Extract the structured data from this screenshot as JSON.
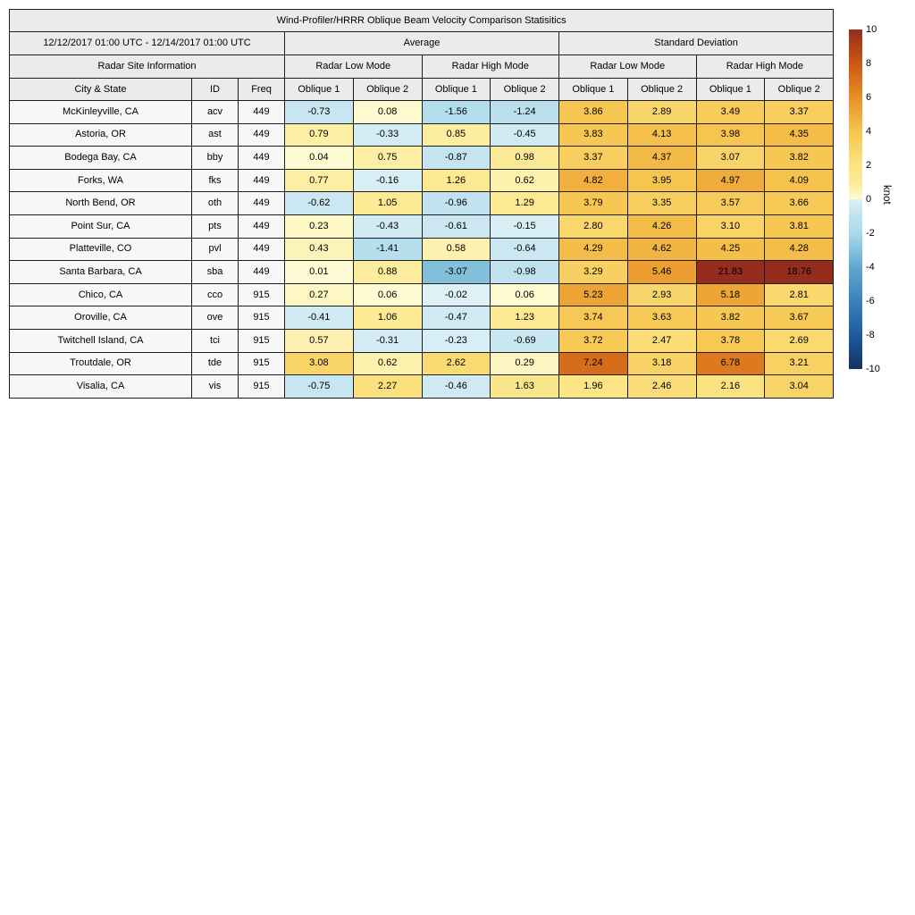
{
  "chart_data": {
    "type": "table-heatmap",
    "title": "Wind-Profiler/HRRR Oblique Beam Velocity Comparison Statisitics",
    "date_range": "12/12/2017 01:00 UTC - 12/14/2017 01:00 UTC",
    "row_header_group": "Radar Site Information",
    "stat_groups": [
      "Average",
      "Standard Deviation"
    ],
    "mode_groups": [
      "Radar Low Mode",
      "Radar High Mode",
      "Radar Low Mode",
      "Radar High Mode"
    ],
    "col_headers": {
      "city": "City & State",
      "id": "ID",
      "freq": "Freq"
    },
    "oblique_labels": [
      "Oblique 1",
      "Oblique 2"
    ],
    "rows": [
      {
        "city": "McKinleyville, CA",
        "id": "acv",
        "freq": "449",
        "values": [
          -0.73,
          0.08,
          -1.56,
          -1.24,
          3.86,
          2.89,
          3.49,
          3.37
        ]
      },
      {
        "city": "Astoria, OR",
        "id": "ast",
        "freq": "449",
        "values": [
          0.79,
          -0.33,
          0.85,
          -0.45,
          3.83,
          4.13,
          3.98,
          4.35
        ]
      },
      {
        "city": "Bodega Bay, CA",
        "id": "bby",
        "freq": "449",
        "values": [
          0.04,
          0.75,
          -0.87,
          0.98,
          3.37,
          4.37,
          3.07,
          3.82
        ]
      },
      {
        "city": "Forks, WA",
        "id": "fks",
        "freq": "449",
        "values": [
          0.77,
          -0.16,
          1.26,
          0.62,
          4.82,
          3.95,
          4.97,
          4.09
        ]
      },
      {
        "city": "North Bend, OR",
        "id": "oth",
        "freq": "449",
        "values": [
          -0.62,
          1.05,
          -0.96,
          1.29,
          3.79,
          3.35,
          3.57,
          3.66
        ]
      },
      {
        "city": "Point Sur, CA",
        "id": "pts",
        "freq": "449",
        "values": [
          0.23,
          -0.43,
          -0.61,
          -0.15,
          2.8,
          4.26,
          3.1,
          3.81
        ]
      },
      {
        "city": "Platteville, CO",
        "id": "pvl",
        "freq": "449",
        "values": [
          0.43,
          -1.41,
          0.58,
          -0.64,
          4.29,
          4.62,
          4.25,
          4.28
        ]
      },
      {
        "city": "Santa Barbara, CA",
        "id": "sba",
        "freq": "449",
        "values": [
          0.01,
          0.88,
          -3.07,
          -0.98,
          3.29,
          5.46,
          21.83,
          18.76
        ]
      },
      {
        "city": "Chico, CA",
        "id": "cco",
        "freq": "915",
        "values": [
          0.27,
          0.06,
          -0.02,
          0.06,
          5.23,
          2.93,
          5.18,
          2.81
        ]
      },
      {
        "city": "Oroville, CA",
        "id": "ove",
        "freq": "915",
        "values": [
          -0.41,
          1.06,
          -0.47,
          1.23,
          3.74,
          3.63,
          3.82,
          3.67
        ]
      },
      {
        "city": "Twitchell Island, CA",
        "id": "tci",
        "freq": "915",
        "values": [
          0.57,
          -0.31,
          -0.23,
          -0.69,
          3.72,
          2.47,
          3.78,
          2.69
        ]
      },
      {
        "city": "Troutdale, OR",
        "id": "tde",
        "freq": "915",
        "values": [
          3.08,
          0.62,
          2.62,
          0.29,
          7.24,
          3.18,
          6.78,
          3.21
        ]
      },
      {
        "city": "Visalia, CA",
        "id": "vis",
        "freq": "915",
        "values": [
          -0.75,
          2.27,
          -0.46,
          1.63,
          1.96,
          2.46,
          2.16,
          3.04
        ]
      }
    ],
    "colorbar": {
      "label": "knot",
      "min": -10,
      "max": 10,
      "ticks": [
        10,
        8,
        6,
        4,
        2,
        0,
        -2,
        -4,
        -6,
        -8,
        -10
      ],
      "colormap_anchors": [
        [
          -10,
          "#16325e"
        ],
        [
          -8,
          "#1d5ba1"
        ],
        [
          -6,
          "#3a82ba"
        ],
        [
          -4,
          "#61a8ce"
        ],
        [
          -2,
          "#a9daeb"
        ],
        [
          -1,
          "#bfe2ef"
        ],
        [
          -0.01,
          "#ddf1f7"
        ],
        [
          0.01,
          "#fefbd4"
        ],
        [
          1,
          "#fcea96"
        ],
        [
          2,
          "#fbe584"
        ],
        [
          4,
          "#f6c44e"
        ],
        [
          6,
          "#e89028"
        ],
        [
          8,
          "#cb5712"
        ],
        [
          10,
          "#942d1d"
        ]
      ]
    },
    "colors": {
      "header_bg": "#ebebeb",
      "row_label_bg": "#f7f7f7",
      "border": "#1c1c1c",
      "background": "#ffffff"
    }
  }
}
